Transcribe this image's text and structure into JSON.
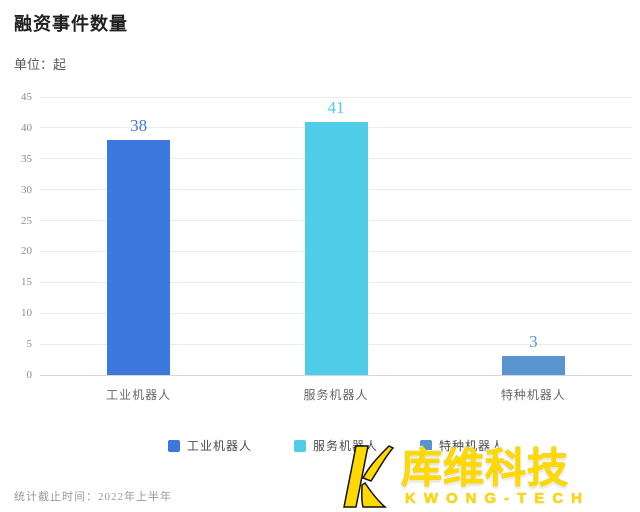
{
  "chart_data": {
    "type": "bar",
    "title": "融资事件数量",
    "unit_label": "单位：起",
    "categories": [
      "工业机器人",
      "服务机器人",
      "特种机器人"
    ],
    "values": [
      38,
      41,
      3
    ],
    "bar_colors": [
      "#3d78df",
      "#4fcce8",
      "#5a94ce"
    ],
    "value_label_colors": [
      "#3d78df",
      "#4fcce8",
      "#5a94ce"
    ],
    "ylim": [
      0,
      45
    ],
    "yticks": [
      0,
      5,
      10,
      15,
      20,
      25,
      30,
      35,
      40,
      45
    ],
    "grid": true,
    "legend_position": "bottom",
    "legend": [
      "工业机器人",
      "服务机器人",
      "特种机器人"
    ]
  },
  "footer": {
    "note": "统计截止时间：2022年上半年"
  },
  "watermark": {
    "brand_cn": "库维科技",
    "brand_en": "KWONG-TECH",
    "color": "#ffd900"
  }
}
